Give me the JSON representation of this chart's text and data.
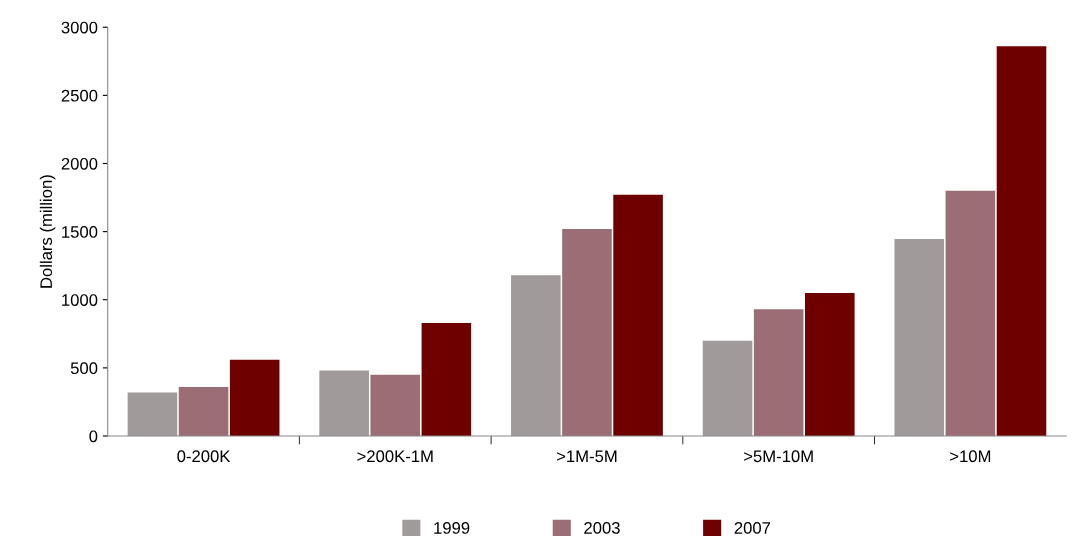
{
  "chart_data": {
    "type": "bar",
    "ylabel": "Dollars (million)",
    "categories": [
      "0-200K",
      ">200K-1M",
      ">1M-5M",
      ">5M-10M",
      ">10M"
    ],
    "series": [
      {
        "name": "1999",
        "color": "#a09a9a",
        "values": [
          320,
          480,
          1180,
          700,
          1445
        ]
      },
      {
        "name": "2003",
        "color": "#9a6e74",
        "values": [
          360,
          450,
          1520,
          930,
          1800
        ]
      },
      {
        "name": "2007",
        "color": "#6e0000",
        "values": [
          560,
          830,
          1770,
          1050,
          2860
        ]
      }
    ],
    "ylim": [
      0,
      3000
    ],
    "yticks": [
      0,
      500,
      1000,
      1500,
      2000,
      2500,
      3000
    ],
    "grid": false,
    "legend": "bottom"
  }
}
